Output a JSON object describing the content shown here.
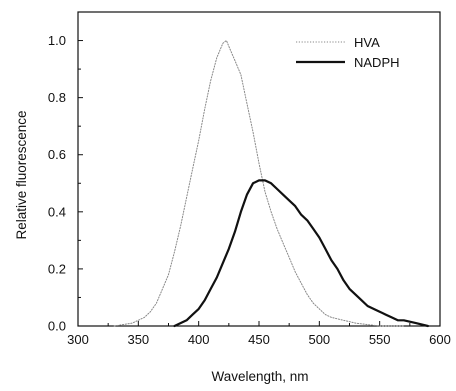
{
  "chart_data": {
    "type": "line",
    "title": "",
    "xlabel": "Wavelength,  nm",
    "ylabel": "Relative fluorescence",
    "xlim": [
      300,
      600
    ],
    "ylim": [
      0,
      1.1
    ],
    "x_ticks": [
      300,
      350,
      400,
      450,
      500,
      550,
      600
    ],
    "y_ticks": [
      0.0,
      0.2,
      0.4,
      0.6,
      0.8,
      1.0
    ],
    "x_tick_labels": [
      "300",
      "350",
      "400",
      "450",
      "500",
      "550",
      "600"
    ],
    "y_tick_labels": [
      "0.0",
      "0.2",
      "0.4",
      "0.6",
      "0.8",
      "1.0"
    ],
    "grid": false,
    "legend_position": "top-right",
    "series": [
      {
        "name": "HVA",
        "style": "thin",
        "color": "#888888",
        "x": [
          330,
          345,
          355,
          360,
          365,
          370,
          375,
          380,
          385,
          390,
          395,
          400,
          405,
          410,
          415,
          420,
          423,
          426,
          430,
          435,
          440,
          445,
          450,
          455,
          460,
          465,
          470,
          475,
          480,
          485,
          490,
          495,
          500,
          505,
          510,
          520,
          530,
          540,
          550,
          560,
          570
        ],
        "y": [
          0.0,
          0.01,
          0.03,
          0.05,
          0.08,
          0.13,
          0.18,
          0.26,
          0.35,
          0.45,
          0.55,
          0.65,
          0.76,
          0.86,
          0.94,
          0.99,
          1.0,
          0.97,
          0.93,
          0.88,
          0.78,
          0.68,
          0.57,
          0.47,
          0.4,
          0.34,
          0.29,
          0.24,
          0.19,
          0.15,
          0.11,
          0.08,
          0.06,
          0.04,
          0.03,
          0.02,
          0.01,
          0.005,
          0.0,
          0.0,
          0.0
        ]
      },
      {
        "name": "NADPH",
        "style": "thick",
        "color": "#111111",
        "x": [
          380,
          390,
          395,
          400,
          405,
          410,
          415,
          420,
          425,
          430,
          435,
          440,
          445,
          450,
          455,
          460,
          465,
          470,
          475,
          480,
          485,
          490,
          495,
          500,
          505,
          510,
          515,
          520,
          525,
          530,
          535,
          540,
          545,
          550,
          555,
          560,
          565,
          570,
          580,
          590
        ],
        "y": [
          0.0,
          0.02,
          0.04,
          0.06,
          0.09,
          0.13,
          0.17,
          0.22,
          0.27,
          0.33,
          0.4,
          0.46,
          0.5,
          0.51,
          0.51,
          0.5,
          0.48,
          0.46,
          0.44,
          0.42,
          0.39,
          0.37,
          0.34,
          0.31,
          0.27,
          0.23,
          0.2,
          0.16,
          0.13,
          0.11,
          0.09,
          0.07,
          0.06,
          0.05,
          0.04,
          0.03,
          0.02,
          0.02,
          0.01,
          0.0
        ]
      }
    ]
  }
}
